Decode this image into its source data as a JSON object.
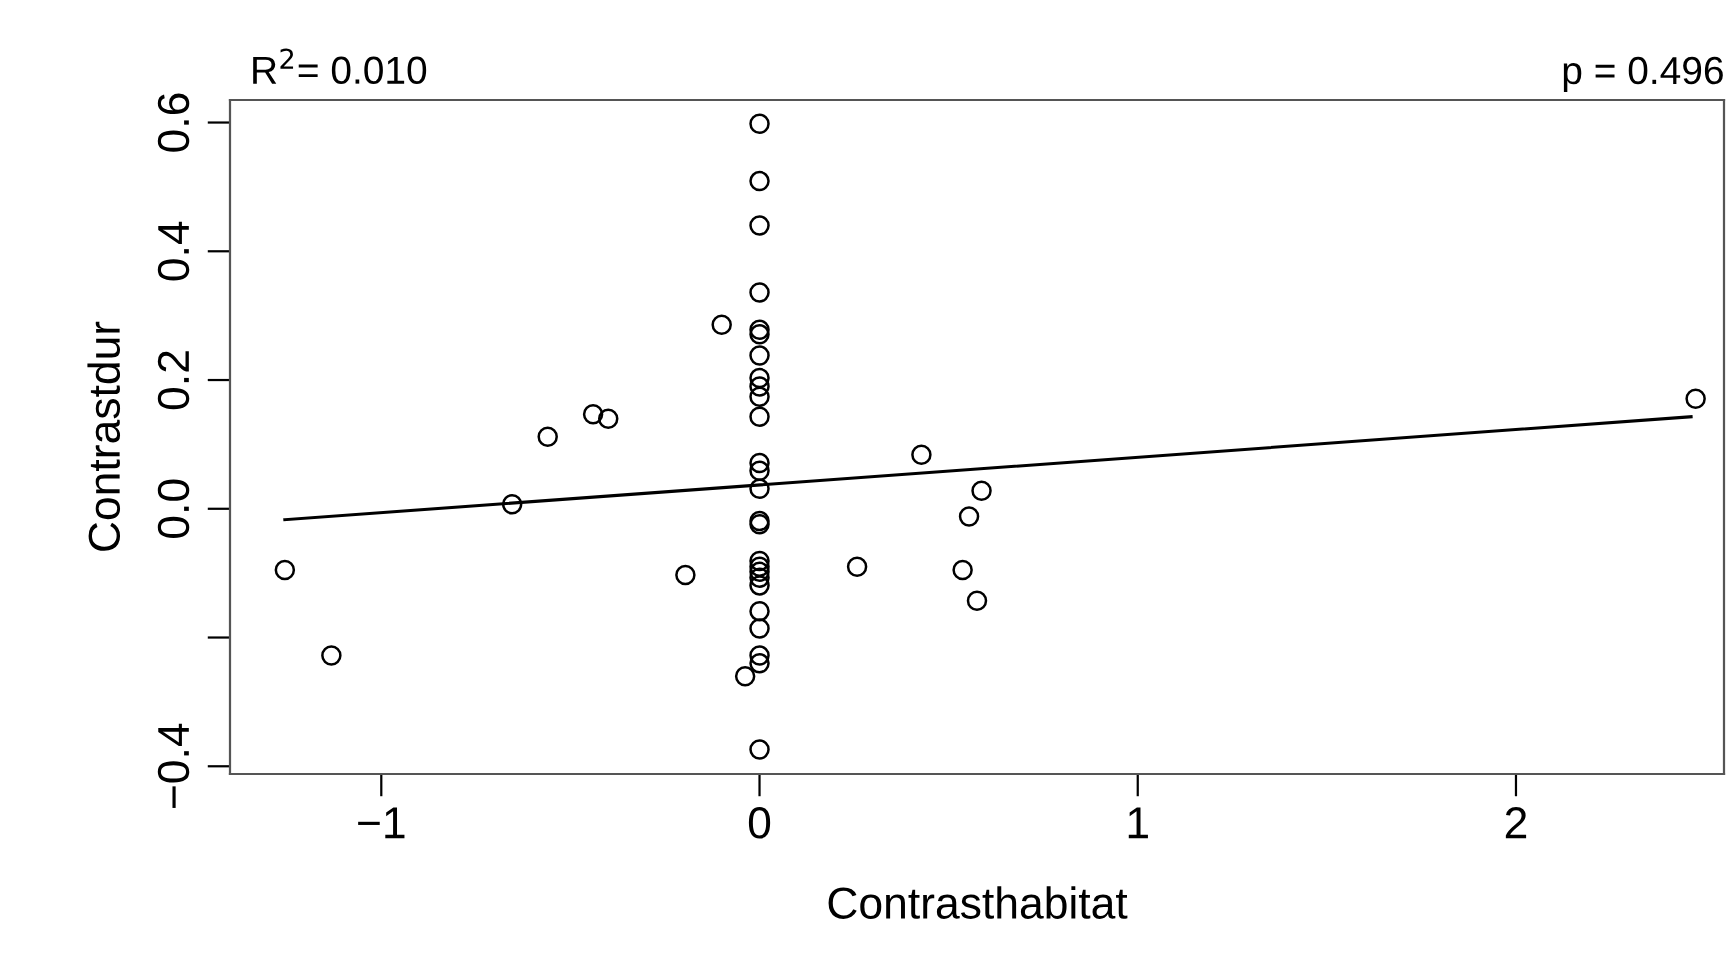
{
  "chart_data": {
    "type": "scatter",
    "xlabel": "Contrasthabitat",
    "ylabel": "Contrastdur",
    "annotations": [
      "R$^{2}$= 0.010",
      "p = 0.496"
    ],
    "xlim": [
      -1.4,
      2.55
    ],
    "ylim": [
      -0.412,
      0.635
    ],
    "xticks": [
      {
        "value": -1,
        "label": "−1"
      },
      0,
      1,
      2
    ],
    "yticks": [
      {
        "value": -0.4,
        "label": "−0.4"
      },
      {
        "value": -0.2,
        "label": null
      },
      {
        "value": 0.0,
        "label": "0.0"
      },
      0.2,
      0.4,
      0.6
    ],
    "grid": false,
    "marker": "circle",
    "series": [
      {
        "color": "#000000",
        "x": [
          0,
          0,
          0,
          0,
          -0.1,
          0,
          0,
          0,
          0,
          0,
          0,
          0,
          -0.44,
          -0.4,
          -0.56,
          -0.654,
          -1.255,
          -1.132,
          -0.196,
          0,
          0,
          0,
          0,
          0,
          0,
          0,
          0,
          0,
          0,
          0,
          0,
          0,
          0,
          -0.038,
          0,
          0.258,
          0.428,
          0.587,
          0.554,
          0.537,
          0.575,
          2.475
        ],
        "values": [
          0.598,
          0.509,
          0.44,
          0.336,
          0.286,
          0.278,
          0.271,
          0.238,
          0.203,
          0.19,
          0.174,
          0.143,
          0.147,
          0.14,
          0.112,
          0.007,
          -0.095,
          -0.228,
          -0.103,
          0.071,
          0.059,
          0.031,
          -0.019,
          -0.024,
          -0.081,
          -0.09,
          -0.098,
          -0.107,
          -0.119,
          -0.159,
          -0.186,
          -0.228,
          -0.24,
          -0.26,
          -0.374,
          -0.09,
          0.084,
          0.028,
          -0.012,
          -0.095,
          -0.143,
          0.171
        ]
      },
      {
        "type": "line",
        "color": "#000000",
        "x": [
          -1.255,
          2.463
        ],
        "values": [
          -0.017,
          0.143
        ],
        "line_style": "solid",
        "marker": "none"
      }
    ]
  }
}
